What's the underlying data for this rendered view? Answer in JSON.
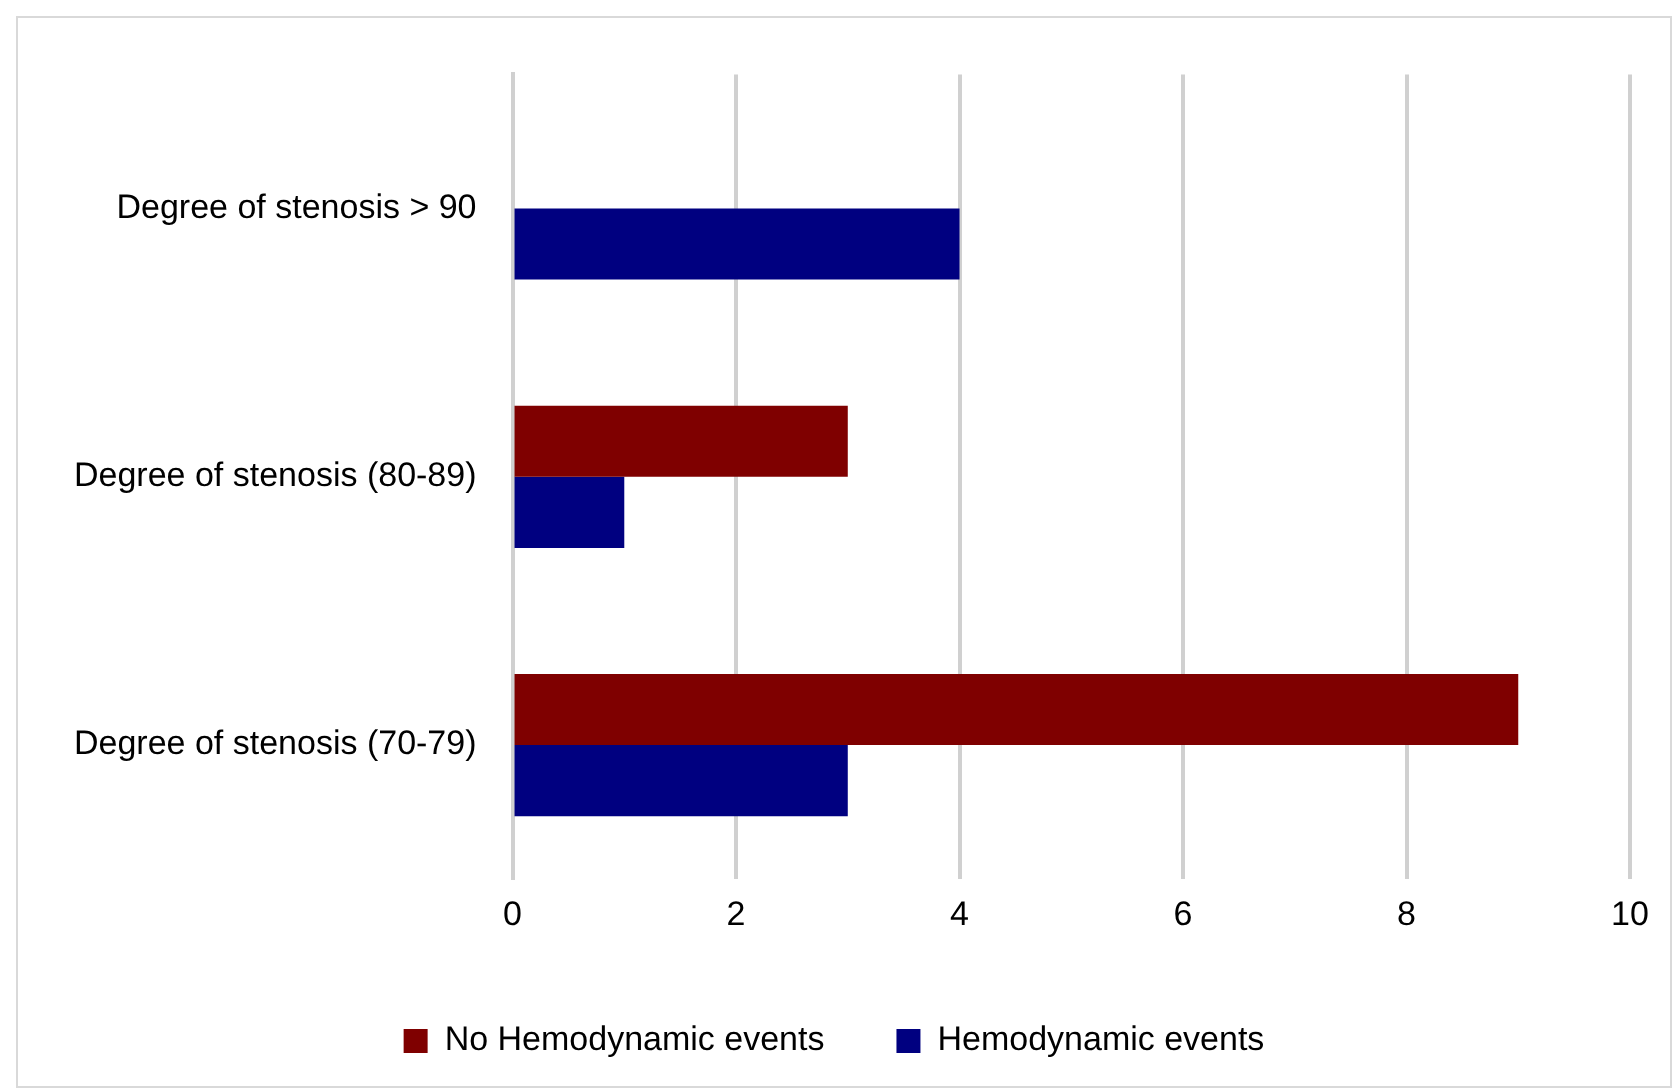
{
  "chart_data": {
    "type": "bar",
    "orientation": "horizontal",
    "categories": [
      "Degree of stenosis > 90",
      "Degree of stenosis (80-89)",
      "Degree of stenosis (70-79)"
    ],
    "series": [
      {
        "name": "No Hemodynamic events",
        "color": "#7f0000",
        "values": [
          0,
          3,
          9
        ]
      },
      {
        "name": "Hemodynamic events",
        "color": "#000080",
        "values": [
          4,
          1,
          3
        ]
      }
    ],
    "xlim": [
      0,
      10
    ],
    "xticks": [
      0,
      2,
      4,
      6,
      8,
      10
    ],
    "grid": "x",
    "legend": "bottom"
  }
}
